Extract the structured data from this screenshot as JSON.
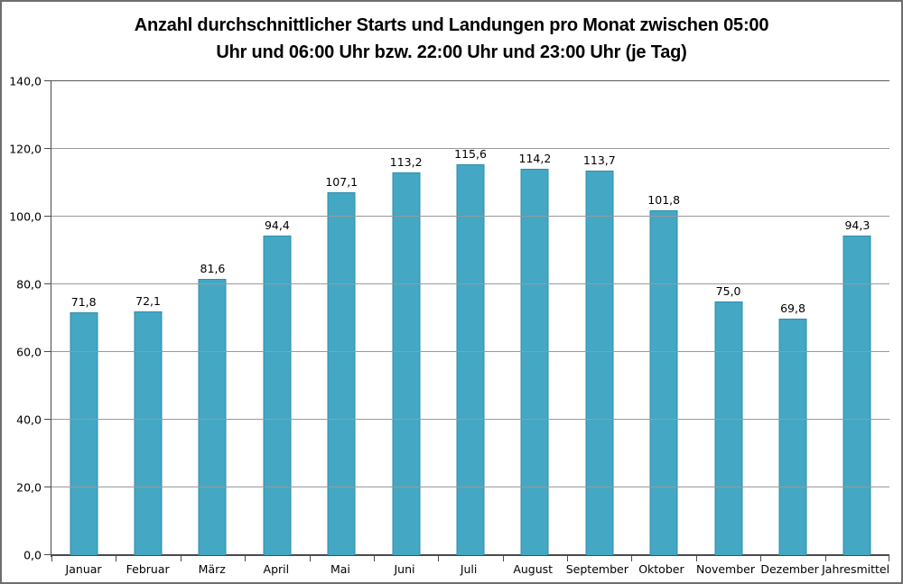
{
  "chart_data": {
    "type": "bar",
    "title": "Anzahl durchschnittlicher Starts und Landungen pro Monat zwischen 05:00 Uhr und 06:00 Uhr bzw. 22:00 Uhr und 23:00 Uhr (je Tag)",
    "title_lines": [
      "Anzahl durchschnittlicher Starts und Landungen pro Monat zwischen 05:00",
      "Uhr und 06:00 Uhr bzw. 22:00 Uhr und 23:00 Uhr (je Tag)"
    ],
    "categories": [
      "Januar",
      "Februar",
      "März",
      "April",
      "Mai",
      "Juni",
      "Juli",
      "August",
      "September",
      "Oktober",
      "November",
      "Dezember",
      "Jahresmittel"
    ],
    "values": [
      71.8,
      72.1,
      81.6,
      94.4,
      107.1,
      113.2,
      115.6,
      114.2,
      113.7,
      101.8,
      75.0,
      69.8,
      94.3
    ],
    "value_labels": [
      "71,8",
      "72,1",
      "81,6",
      "94,4",
      "107,1",
      "113,2",
      "115,6",
      "114,2",
      "113,7",
      "101,8",
      "75,0",
      "69,8",
      "94,3"
    ],
    "xlabel": "",
    "ylabel": "",
    "ylim": [
      0,
      140
    ],
    "y_tick_step": 20,
    "y_tick_labels": [
      "0,0",
      "20,0",
      "40,0",
      "60,0",
      "80,0",
      "100,0",
      "120,0",
      "140,0"
    ],
    "grid": true,
    "legend": false,
    "colors": {
      "bar_fill": "#44a7c4",
      "bar_border": "#2e8dab",
      "gridline": "#9a9a9a",
      "axis": "#4a4a4a",
      "frame_border": "#6e6e6e",
      "text": "#000000"
    }
  }
}
